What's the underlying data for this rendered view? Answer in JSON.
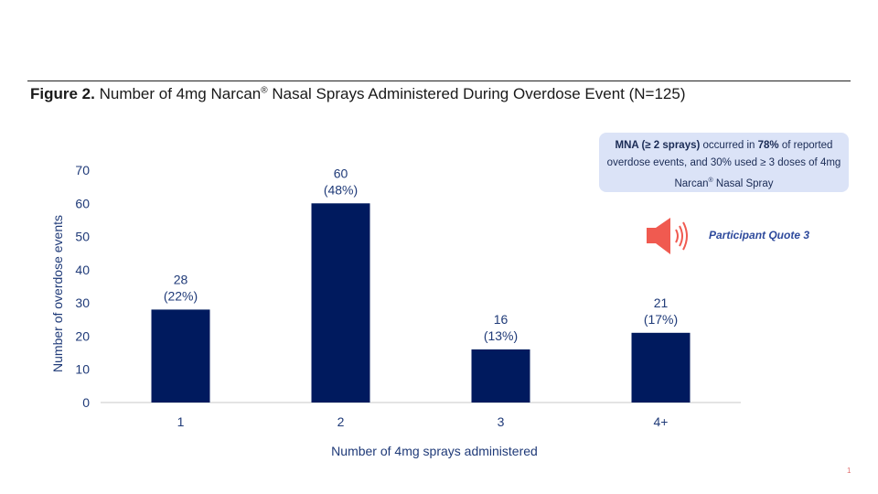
{
  "figure_label": "Figure 2.",
  "title_part1": " Number of 4mg Narcan",
  "title_reg": "®",
  "title_part2": " Nasal Sprays Administered During Overdose Event (N=125)",
  "callout": {
    "bold1": "MNA (≥ 2 sprays)",
    "text1": " occurred in ",
    "bold2": "78%",
    "text2": " of reported overdose events, and 30% used ≥ 3 doses of 4mg Narcan",
    "sup": "®",
    "text3": " Nasal Spray"
  },
  "quote_label": "Participant Quote 3",
  "icon": "speaker-icon",
  "page_number": "1",
  "colors": {
    "bar": "#001a5e",
    "text": "#1f3a78",
    "callout_bg": "#dbe3f7",
    "speaker": "#f05a50"
  },
  "chart_data": {
    "type": "bar",
    "categories": [
      "1",
      "2",
      "3",
      "4+"
    ],
    "values": [
      28,
      60,
      16,
      21
    ],
    "data_labels": [
      [
        "28",
        "(22%)"
      ],
      [
        "60",
        "(48%)"
      ],
      [
        "16",
        "(13%)"
      ],
      [
        "21",
        "(17%)"
      ]
    ],
    "xlabel": "Number of 4mg sprays administered",
    "ylabel": "Number of overdose events",
    "ylim": [
      0,
      70
    ],
    "yticks": [
      0,
      10,
      20,
      30,
      40,
      50,
      60,
      70
    ],
    "grid": false,
    "legend": "none"
  }
}
